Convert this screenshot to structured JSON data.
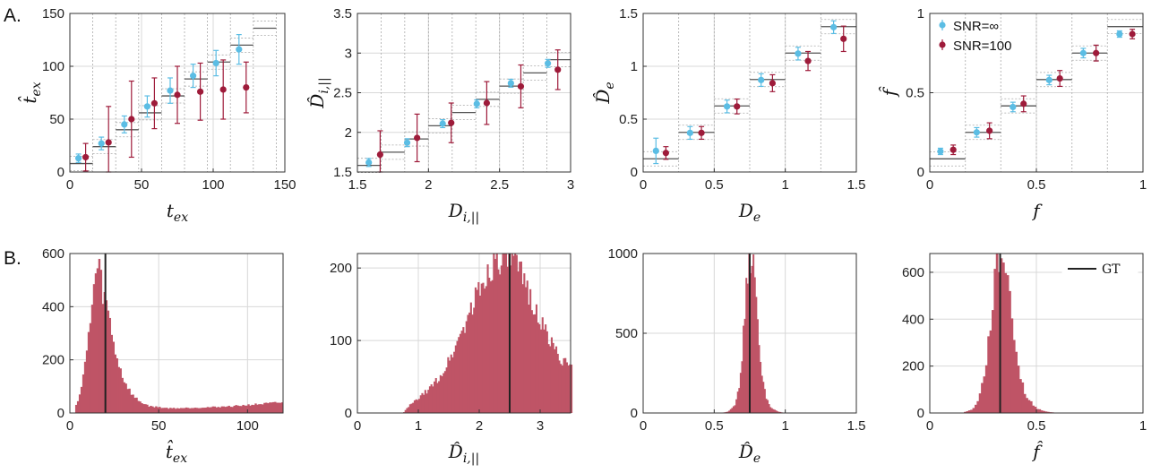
{
  "panel_labels": [
    "A.",
    "B."
  ],
  "colors": {
    "noiseless": "#5bbde4",
    "snr100": "#9e1b3a",
    "hist": "#bf5466",
    "gt": "#222222",
    "grid": "#d8d8d8",
    "bin": "#aaaaaa"
  },
  "chart_data": [
    {
      "type": "scatter",
      "id": "a1",
      "xlabel": "t_ex",
      "ylabel": "t̂_ex",
      "xlim": [
        0,
        150
      ],
      "ylim": [
        0,
        150
      ],
      "xticks": [
        "0",
        "50",
        "100",
        "150"
      ],
      "yticks": [
        "0",
        "50",
        "100",
        "150"
      ],
      "grid": true,
      "bin_edges": [
        0,
        16,
        32,
        48,
        64,
        80,
        96,
        112,
        128,
        144
      ],
      "bin_truth": [
        8,
        24,
        40,
        56,
        72,
        88,
        104,
        120,
        136
      ],
      "series": [
        {
          "x": [
            6,
            22,
            38,
            54,
            70,
            86,
            102,
            118
          ],
          "y": [
            13,
            27,
            45,
            62,
            77,
            91,
            103,
            116
          ],
          "err": [
            4,
            6,
            8,
            10,
            12,
            11,
            12,
            14
          ]
        },
        {
          "x": [
            11,
            27,
            43,
            59,
            75,
            91,
            107,
            123
          ],
          "y": [
            14,
            28,
            50,
            65,
            73,
            76,
            78,
            80
          ],
          "err": [
            13,
            34,
            36,
            24,
            27,
            27,
            28,
            24
          ]
        }
      ],
      "legend": null
    },
    {
      "type": "scatter",
      "id": "a2",
      "xlabel": "D_i,||",
      "ylabel": "D̂_i,||",
      "xlim": [
        1.5,
        3.0
      ],
      "ylim": [
        1.5,
        3.5
      ],
      "xticks": [
        "1.5",
        "2",
        "2.5",
        "3"
      ],
      "yticks": [
        "1.5",
        "2",
        "2.5",
        "3",
        "3.5"
      ],
      "grid": true,
      "bin_edges": [
        1.5,
        1.667,
        1.833,
        2.0,
        2.167,
        2.333,
        2.5,
        2.667,
        2.833,
        3.0
      ],
      "bin_truth": [
        1.583,
        1.75,
        1.917,
        2.083,
        2.25,
        2.417,
        2.583,
        2.75,
        2.917
      ],
      "series": [
        {
          "x": [
            1.58,
            1.85,
            2.1,
            2.34,
            2.58,
            2.84
          ],
          "y": [
            1.62,
            1.87,
            2.11,
            2.36,
            2.62,
            2.87
          ],
          "err": [
            0.05,
            0.05,
            0.05,
            0.05,
            0.05,
            0.05
          ]
        },
        {
          "x": [
            1.66,
            1.92,
            2.16,
            2.41,
            2.65,
            2.91
          ],
          "y": [
            1.72,
            1.93,
            2.12,
            2.37,
            2.58,
            2.79
          ],
          "err": [
            0.3,
            0.3,
            0.25,
            0.27,
            0.27,
            0.25
          ]
        }
      ],
      "legend": null
    },
    {
      "type": "scatter",
      "id": "a3",
      "xlabel": "D_e",
      "ylabel": "D̂_e",
      "xlim": [
        0,
        1.5
      ],
      "ylim": [
        0,
        1.5
      ],
      "xticks": [
        "0",
        "0.5",
        "1",
        "1.5"
      ],
      "yticks": [
        "0",
        "0.5",
        "1",
        "1.5"
      ],
      "grid": true,
      "bin_edges": [
        0,
        0.25,
        0.5,
        0.75,
        1.0,
        1.25,
        1.5
      ],
      "bin_truth": [
        0.125,
        0.375,
        0.625,
        0.875,
        1.125,
        1.375
      ],
      "series": [
        {
          "x": [
            0.09,
            0.33,
            0.59,
            0.83,
            1.09,
            1.34
          ],
          "y": [
            0.2,
            0.37,
            0.62,
            0.87,
            1.12,
            1.37
          ],
          "err": [
            0.12,
            0.06,
            0.06,
            0.06,
            0.06,
            0.06
          ]
        },
        {
          "x": [
            0.16,
            0.41,
            0.66,
            0.91,
            1.16,
            1.41
          ],
          "y": [
            0.18,
            0.37,
            0.62,
            0.84,
            1.05,
            1.26
          ],
          "err": [
            0.06,
            0.06,
            0.07,
            0.08,
            0.09,
            0.12
          ]
        }
      ],
      "legend": null
    },
    {
      "type": "scatter",
      "id": "a4",
      "xlabel": "f",
      "ylabel": "f̂",
      "xlim": [
        0,
        1
      ],
      "ylim": [
        0,
        1
      ],
      "xticks": [
        "0",
        "0.5",
        "1"
      ],
      "yticks": [
        "0",
        "0.5",
        "1"
      ],
      "grid": true,
      "bin_edges": [
        0,
        0.167,
        0.333,
        0.5,
        0.667,
        0.833,
        1.0
      ],
      "bin_truth": [
        0.083,
        0.25,
        0.417,
        0.583,
        0.75,
        0.917
      ],
      "series": [
        {
          "name": "SNR=∞",
          "x": [
            0.05,
            0.22,
            0.39,
            0.56,
            0.72,
            0.89
          ],
          "y": [
            0.13,
            0.25,
            0.41,
            0.58,
            0.75,
            0.87
          ],
          "err": [
            0.02,
            0.03,
            0.03,
            0.03,
            0.03,
            0.02
          ]
        },
        {
          "name": "SNR=100",
          "x": [
            0.11,
            0.28,
            0.44,
            0.61,
            0.78,
            0.95
          ],
          "y": [
            0.14,
            0.26,
            0.43,
            0.59,
            0.75,
            0.87
          ],
          "err": [
            0.03,
            0.05,
            0.05,
            0.05,
            0.05,
            0.03
          ]
        }
      ],
      "legend": "top-left"
    },
    {
      "type": "bar",
      "id": "b1",
      "xlabel": "t̂_ex",
      "ylabel": "",
      "xlim": [
        0,
        120
      ],
      "ylim": [
        0,
        600
      ],
      "xticks": [
        "0",
        "50",
        "100"
      ],
      "yticks": [
        "0",
        "200",
        "400",
        "600"
      ],
      "grid": true,
      "gt": 20,
      "bin_width": 1,
      "x": [
        3,
        6,
        9,
        12,
        14,
        16,
        18,
        20,
        22,
        24,
        26,
        28,
        30,
        33,
        36,
        40,
        45,
        50,
        55,
        60,
        70,
        80,
        90,
        100,
        110,
        120
      ],
      "values": [
        20,
        80,
        200,
        380,
        500,
        560,
        470,
        420,
        360,
        280,
        220,
        170,
        130,
        90,
        60,
        40,
        25,
        22,
        18,
        18,
        20,
        22,
        25,
        30,
        35,
        40
      ],
      "legend": null
    },
    {
      "type": "bar",
      "id": "b2",
      "xlabel": "D̂_i,||",
      "ylabel": "",
      "xlim": [
        0,
        3.5
      ],
      "ylim": [
        0,
        220
      ],
      "xticks": [
        "0",
        "1",
        "2",
        "3"
      ],
      "yticks": [
        "0",
        "100",
        "200"
      ],
      "grid": true,
      "gt": 2.5,
      "bin_width": 0.025,
      "x": [
        0.75,
        0.85,
        1.0,
        1.2,
        1.4,
        1.6,
        1.8,
        2.0,
        2.1,
        2.2,
        2.3,
        2.4,
        2.5,
        2.6,
        2.7,
        2.8,
        2.9,
        3.0,
        3.1,
        3.2,
        3.3,
        3.4,
        3.5
      ],
      "values": [
        0,
        10,
        20,
        35,
        55,
        90,
        130,
        170,
        185,
        205,
        215,
        220,
        210,
        200,
        185,
        170,
        150,
        125,
        110,
        95,
        80,
        70,
        60
      ],
      "legend": null
    },
    {
      "type": "bar",
      "id": "b3",
      "xlabel": "D̂_e",
      "ylabel": "",
      "xlim": [
        0,
        1.5
      ],
      "ylim": [
        0,
        1000
      ],
      "xticks": [
        "0",
        "0.5",
        "1",
        "1.5"
      ],
      "yticks": [
        "0",
        "500",
        "1000"
      ],
      "grid": true,
      "gt": 0.75,
      "bin_width": 0.01,
      "x": [
        0.55,
        0.6,
        0.65,
        0.68,
        0.7,
        0.72,
        0.74,
        0.76,
        0.78,
        0.8,
        0.82,
        0.84,
        0.86,
        0.9,
        0.95,
        1.0
      ],
      "values": [
        0,
        10,
        60,
        180,
        420,
        700,
        950,
        1000,
        880,
        600,
        380,
        220,
        110,
        30,
        8,
        0
      ],
      "legend": null
    },
    {
      "type": "bar",
      "id": "b4",
      "xlabel": "f̂",
      "ylabel": "",
      "xlim": [
        0,
        1
      ],
      "ylim": [
        0,
        680
      ],
      "xticks": [
        "0",
        "0.5",
        "1"
      ],
      "yticks": [
        "0",
        "200",
        "400",
        "600"
      ],
      "grid": true,
      "gt": 0.33,
      "bin_width": 0.01,
      "x": [
        0.15,
        0.2,
        0.23,
        0.26,
        0.28,
        0.3,
        0.32,
        0.34,
        0.36,
        0.38,
        0.4,
        0.42,
        0.45,
        0.5,
        0.55,
        0.6
      ],
      "values": [
        0,
        15,
        60,
        180,
        340,
        520,
        660,
        680,
        600,
        460,
        300,
        170,
        70,
        20,
        5,
        0
      ],
      "legend": "top-right",
      "legend_label": "GT"
    }
  ]
}
